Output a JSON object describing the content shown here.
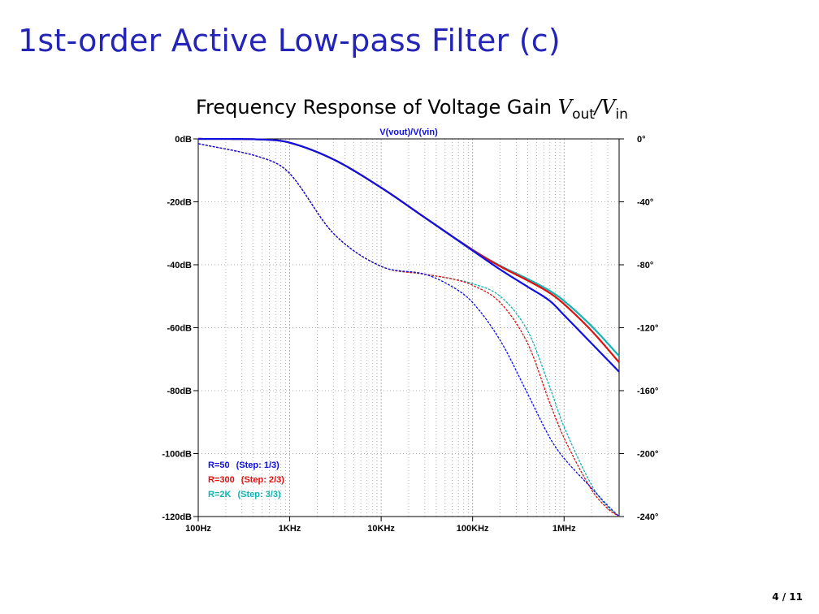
{
  "slide": {
    "title": "1st-order Active Low-pass Filter (c)",
    "page_number": "4 / 11"
  },
  "chart_heading": {
    "prefix": "Frequency Response of Voltage Gain ",
    "v1": "V",
    "sub1": "out",
    "slash": "/",
    "v2": "V",
    "sub2": "in"
  },
  "chart_data": {
    "type": "line",
    "title": "V(vout)/V(vin)",
    "x_scale": "log",
    "xlim": [
      100,
      4000000
    ],
    "x_ticks": [
      {
        "value": 100,
        "label": "100Hz"
      },
      {
        "value": 1000,
        "label": "1KHz"
      },
      {
        "value": 10000,
        "label": "10KHz"
      },
      {
        "value": 100000,
        "label": "100KHz"
      },
      {
        "value": 1000000,
        "label": "1MHz"
      }
    ],
    "ylim": [
      -120,
      0
    ],
    "y_ticks": [
      {
        "value": 0,
        "label": "0dB"
      },
      {
        "value": -20,
        "label": "-20dB"
      },
      {
        "value": -40,
        "label": "-40dB"
      },
      {
        "value": -60,
        "label": "-60dB"
      },
      {
        "value": -80,
        "label": "-80dB"
      },
      {
        "value": -100,
        "label": "-100dB"
      },
      {
        "value": -120,
        "label": "-120dB"
      }
    ],
    "y2lim": [
      -240,
      0
    ],
    "y2_ticks": [
      {
        "value": 0,
        "label": "0°"
      },
      {
        "value": -40,
        "label": "-40°"
      },
      {
        "value": -80,
        "label": "-80°"
      },
      {
        "value": -120,
        "label": "-120°"
      },
      {
        "value": -160,
        "label": "-160°"
      },
      {
        "value": -200,
        "label": "-200°"
      },
      {
        "value": -240,
        "label": "-240°"
      }
    ],
    "grid": true,
    "legend_position": "bottom-left",
    "series": [
      {
        "name": "R=50",
        "step": "(Step: 1/3)",
        "color": "#1010e0",
        "magnitude": {
          "x": [
            100,
            500,
            1000,
            3000,
            10000,
            30000,
            100000,
            200000,
            400000,
            700000,
            1000000,
            2000000,
            4000000
          ],
          "y": [
            0,
            -0.2,
            -1.2,
            -6.5,
            -15.5,
            -25,
            -35.5,
            -41.5,
            -47,
            -51.5,
            -56,
            -65,
            -74
          ]
        },
        "phase": {
          "x": [
            100,
            500,
            1000,
            3000,
            10000,
            30000,
            60000,
            100000,
            200000,
            400000,
            700000,
            1000000,
            2000000,
            3000000,
            4000000
          ],
          "y": [
            -3,
            -12,
            -22,
            -60,
            -81,
            -86,
            -94,
            -104,
            -128,
            -162,
            -190,
            -203,
            -222,
            -233,
            -240
          ]
        }
      },
      {
        "name": "R=300",
        "step": "(Step: 2/3)",
        "color": "#e01010",
        "magnitude": {
          "x": [
            100,
            500,
            1000,
            3000,
            10000,
            30000,
            100000,
            200000,
            400000,
            700000,
            1000000,
            2000000,
            4000000
          ],
          "y": [
            0,
            -0.2,
            -1.2,
            -6.5,
            -15.5,
            -25,
            -35.3,
            -40.5,
            -45,
            -49,
            -52.5,
            -61,
            -71
          ]
        },
        "phase": {
          "x": [
            100,
            500,
            1000,
            3000,
            10000,
            30000,
            60000,
            100000,
            200000,
            400000,
            700000,
            1000000,
            2000000,
            3000000,
            4000000
          ],
          "y": [
            -3,
            -12,
            -22,
            -60,
            -81,
            -86,
            -89,
            -93,
            -104,
            -130,
            -168,
            -190,
            -223,
            -235,
            -240
          ]
        }
      },
      {
        "name": "R=2K",
        "step": "(Step: 3/3)",
        "color": "#10b4b4",
        "magnitude": {
          "x": [
            100,
            500,
            1000,
            3000,
            10000,
            30000,
            100000,
            200000,
            400000,
            700000,
            1000000,
            2000000,
            4000000
          ],
          "y": [
            0,
            -0.2,
            -1.2,
            -6.5,
            -15.5,
            -25,
            -35.2,
            -40.3,
            -44.5,
            -48.3,
            -51.5,
            -59.5,
            -69
          ]
        },
        "phase": {
          "x": [
            100,
            500,
            1000,
            3000,
            10000,
            30000,
            60000,
            100000,
            200000,
            400000,
            700000,
            1000000,
            2000000,
            3000000,
            4000000
          ],
          "y": [
            -3,
            -12,
            -22,
            -60,
            -81,
            -86,
            -89,
            -92,
            -100,
            -122,
            -158,
            -183,
            -220,
            -234,
            -240
          ]
        }
      }
    ]
  }
}
